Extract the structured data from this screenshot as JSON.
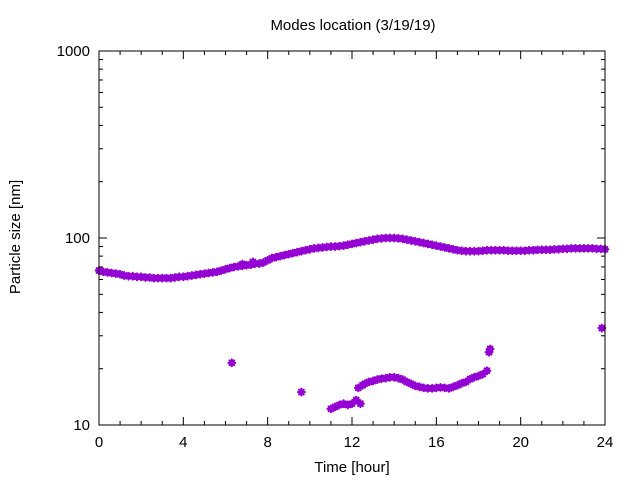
{
  "chart_data": {
    "type": "scatter",
    "title": "Modes location (3/19/19)",
    "xlabel": "Time [hour]",
    "ylabel": "Particle size [nm]",
    "xlim": [
      0,
      24
    ],
    "ylim": [
      10,
      1000
    ],
    "y_scale": "log",
    "x_ticks": [
      0,
      4,
      8,
      12,
      16,
      20,
      24
    ],
    "x_tick_labels": [
      "0",
      "4",
      "8",
      "12",
      "16",
      "20",
      "24"
    ],
    "y_ticks": [
      10,
      100,
      1000
    ],
    "y_tick_labels": [
      "10",
      "100",
      "1000"
    ],
    "grid": false,
    "legend": "none",
    "marker_color": "#9400d3",
    "series": [
      {
        "x": [
          0.0,
          0.2,
          0.4,
          0.6,
          0.8,
          1.0,
          1.2,
          1.4,
          1.6,
          1.8,
          2.0,
          2.2,
          2.4,
          2.6,
          2.8,
          3.0,
          3.2,
          3.4,
          3.6,
          3.8,
          4.0,
          4.2,
          4.4,
          4.6,
          4.8,
          5.0,
          5.2,
          5.4,
          5.6,
          5.8,
          6.0,
          6.2,
          6.4,
          6.6,
          6.8,
          7.0,
          7.2,
          7.4,
          7.6,
          7.8,
          8.0,
          8.2,
          8.4,
          8.6,
          8.8,
          9.0,
          9.2,
          9.4,
          9.6,
          9.8,
          10.0,
          10.2,
          10.4,
          10.6,
          10.8,
          11.0,
          11.2,
          11.4,
          11.6,
          11.8,
          12.0,
          12.2,
          12.4,
          12.6,
          12.8,
          13.0,
          13.2,
          13.4,
          13.6,
          13.8,
          14.0,
          14.2,
          14.4,
          14.6,
          14.8,
          15.0,
          15.2,
          15.4,
          15.6,
          15.8,
          16.0,
          16.2,
          16.4,
          16.6,
          16.8,
          17.0,
          17.2,
          17.4,
          17.6,
          17.8,
          18.0,
          18.2,
          18.4,
          18.6,
          18.8,
          19.0,
          19.2,
          19.4,
          19.6,
          19.8,
          20.0,
          20.2,
          20.4,
          20.6,
          20.8,
          21.0,
          21.2,
          21.4,
          21.6,
          21.8,
          22.0,
          22.2,
          22.4,
          22.6,
          22.8,
          23.0,
          23.2,
          23.4,
          23.6,
          23.8,
          24.0
        ],
        "y": [
          67,
          66,
          65.5,
          65,
          64.5,
          64,
          63,
          62.5,
          62.5,
          62,
          62,
          61.5,
          61.5,
          61,
          61,
          61,
          61,
          61,
          61.5,
          62,
          62,
          62.5,
          63,
          63.5,
          64,
          64.5,
          65,
          65.5,
          66,
          67,
          68,
          69,
          70,
          70.5,
          71,
          71.5,
          72,
          73,
          73,
          74,
          76,
          78,
          79,
          80,
          81,
          82,
          83,
          84,
          85,
          86,
          87,
          88,
          88.5,
          89,
          89.5,
          90,
          90,
          90.5,
          91,
          92,
          93,
          94,
          95,
          96,
          97,
          98,
          99,
          99.5,
          100,
          100,
          100,
          99.5,
          99,
          98,
          97,
          96,
          95,
          94,
          93,
          92,
          91,
          90,
          89,
          88,
          87,
          86,
          85.5,
          85,
          85,
          85,
          85,
          85.5,
          86,
          86,
          86,
          86,
          86,
          85.5,
          85.5,
          85.5,
          85.5,
          85.5,
          86,
          86,
          86.5,
          86.5,
          86.5,
          86.5,
          87,
          87,
          87.5,
          87.5,
          88,
          88,
          88,
          88,
          88,
          88,
          87.5,
          87.5,
          87
        ]
      },
      {
        "x": [
          6.3,
          6.8,
          7.3,
          9.6,
          11.0,
          11.2,
          11.4,
          11.6,
          11.8,
          12.0,
          12.2,
          12.3,
          12.4,
          12.5,
          12.6,
          12.8,
          13.0,
          13.2,
          13.4,
          13.6,
          13.8,
          14.0,
          14.2,
          14.4,
          14.6,
          14.8,
          15.0,
          15.2,
          15.4,
          15.6,
          15.8,
          16.0,
          16.2,
          16.4,
          16.6,
          16.8,
          17.0,
          17.2,
          17.4,
          17.6,
          17.8,
          18.0,
          18.2,
          18.4,
          18.5,
          18.55,
          23.85
        ],
        "y": [
          21.5,
          72.5,
          74.5,
          15,
          12.2,
          12.5,
          12.8,
          13,
          12.8,
          13,
          13.6,
          15.8,
          13,
          16.3,
          16.6,
          17,
          17.2,
          17.5,
          17.7,
          17.8,
          18,
          18,
          17.8,
          17.5,
          17,
          16.6,
          16.2,
          16,
          15.8,
          15.7,
          15.7,
          15.8,
          15.9,
          15.8,
          15.7,
          16,
          16.3,
          16.7,
          17,
          17.6,
          18,
          18.3,
          18.7,
          19.5,
          24.5,
          25.5,
          33
        ]
      }
    ]
  }
}
